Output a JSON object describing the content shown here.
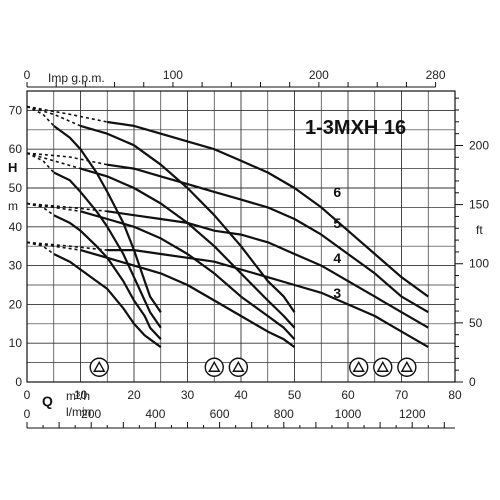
{
  "chart_data": {
    "type": "line",
    "title": "1-3MXH 16",
    "q_label": "Q",
    "h_label": "H",
    "h_unit": "m",
    "ft_label": "ft",
    "top_axis_label": "Imp g.p.m.",
    "m3h_label": "m³/h",
    "lmin_label": "l/min",
    "x_ticks_m3h": [
      0,
      10,
      20,
      30,
      40,
      50,
      60,
      70,
      80
    ],
    "x_ticks_lmin": [
      0,
      200,
      400,
      600,
      800,
      1000,
      1200
    ],
    "x_ticks_imp": [
      0,
      100,
      200,
      280
    ],
    "y_ticks_m": [
      0,
      10,
      20,
      30,
      40,
      50,
      60,
      70
    ],
    "y_ticks_ft": [
      0,
      50,
      100,
      150,
      200
    ],
    "xlim_m3h": [
      0,
      80
    ],
    "ylim_m": [
      0,
      75
    ],
    "grid": true,
    "pump_icon_groups": [
      {
        "count": 1,
        "label": "1 pump"
      },
      {
        "count": 2,
        "label": "2 pumps"
      },
      {
        "count": 3,
        "label": "3 pumps"
      }
    ],
    "series": [
      {
        "name": "6",
        "stages": 6,
        "pumps": 1,
        "solid": [
          [
            5,
            66
          ],
          [
            8,
            63
          ],
          [
            10,
            60
          ],
          [
            13,
            54
          ],
          [
            15,
            49
          ],
          [
            18,
            41
          ],
          [
            20,
            34
          ],
          [
            22,
            26
          ],
          [
            23,
            22
          ],
          [
            25,
            18
          ]
        ],
        "dashed": [
          [
            0,
            71
          ],
          [
            3,
            69
          ],
          [
            5,
            66
          ]
        ]
      },
      {
        "name": "6",
        "stages": 6,
        "pumps": 2,
        "solid": [
          [
            10,
            66
          ],
          [
            15,
            64
          ],
          [
            20,
            61
          ],
          [
            25,
            56
          ],
          [
            30,
            50
          ],
          [
            35,
            43
          ],
          [
            40,
            35
          ],
          [
            45,
            26
          ],
          [
            48,
            22
          ],
          [
            50,
            18
          ]
        ],
        "dashed": [
          [
            0,
            71
          ],
          [
            5,
            69
          ],
          [
            10,
            66
          ]
        ]
      },
      {
        "name": "6",
        "stages": 6,
        "pumps": 3,
        "solid": [
          [
            15,
            67
          ],
          [
            20,
            66
          ],
          [
            25,
            64
          ],
          [
            30,
            62
          ],
          [
            35,
            60
          ],
          [
            40,
            57
          ],
          [
            45,
            54
          ],
          [
            50,
            50
          ],
          [
            55,
            45
          ],
          [
            60,
            39
          ],
          [
            65,
            33
          ],
          [
            70,
            27
          ],
          [
            75,
            22
          ]
        ],
        "dashed": [
          [
            0,
            71
          ],
          [
            8,
            69
          ],
          [
            15,
            67
          ]
        ]
      },
      {
        "name": "5",
        "stages": 5,
        "pumps": 1,
        "solid": [
          [
            5,
            54
          ],
          [
            8,
            52
          ],
          [
            10,
            49
          ],
          [
            13,
            44
          ],
          [
            15,
            40
          ],
          [
            18,
            33
          ],
          [
            20,
            27
          ],
          [
            22,
            21
          ],
          [
            23,
            18
          ],
          [
            25,
            14
          ]
        ],
        "dashed": [
          [
            0,
            59
          ],
          [
            3,
            57
          ],
          [
            5,
            54
          ]
        ]
      },
      {
        "name": "5",
        "stages": 5,
        "pumps": 2,
        "solid": [
          [
            10,
            55
          ],
          [
            15,
            53
          ],
          [
            20,
            50
          ],
          [
            25,
            46
          ],
          [
            30,
            41
          ],
          [
            35,
            35
          ],
          [
            40,
            28
          ],
          [
            45,
            21
          ],
          [
            48,
            17
          ],
          [
            50,
            14
          ]
        ],
        "dashed": [
          [
            0,
            59
          ],
          [
            5,
            57
          ],
          [
            10,
            55
          ]
        ]
      },
      {
        "name": "5",
        "stages": 5,
        "pumps": 3,
        "solid": [
          [
            15,
            56
          ],
          [
            20,
            55
          ],
          [
            25,
            53
          ],
          [
            30,
            51
          ],
          [
            35,
            49
          ],
          [
            40,
            47
          ],
          [
            45,
            45
          ],
          [
            50,
            42
          ],
          [
            55,
            38
          ],
          [
            60,
            33
          ],
          [
            65,
            28
          ],
          [
            70,
            22
          ],
          [
            75,
            18
          ]
        ],
        "dashed": [
          [
            0,
            59
          ],
          [
            8,
            58
          ],
          [
            15,
            56
          ]
        ]
      },
      {
        "name": "4",
        "stages": 4,
        "pumps": 1,
        "solid": [
          [
            5,
            43
          ],
          [
            8,
            41
          ],
          [
            10,
            39
          ],
          [
            13,
            35
          ],
          [
            15,
            32
          ],
          [
            18,
            26
          ],
          [
            20,
            21
          ],
          [
            22,
            17
          ],
          [
            23,
            14
          ],
          [
            25,
            11
          ]
        ],
        "dashed": [
          [
            0,
            46
          ],
          [
            3,
            45
          ],
          [
            5,
            43
          ]
        ]
      },
      {
        "name": "4",
        "stages": 4,
        "pumps": 2,
        "solid": [
          [
            10,
            44
          ],
          [
            15,
            42
          ],
          [
            20,
            40
          ],
          [
            25,
            37
          ],
          [
            30,
            33
          ],
          [
            35,
            28
          ],
          [
            40,
            22
          ],
          [
            45,
            17
          ],
          [
            48,
            14
          ],
          [
            50,
            11
          ]
        ],
        "dashed": [
          [
            0,
            46
          ],
          [
            5,
            45
          ],
          [
            10,
            44
          ]
        ]
      },
      {
        "name": "4",
        "stages": 4,
        "pumps": 3,
        "solid": [
          [
            15,
            44
          ],
          [
            20,
            43
          ],
          [
            25,
            42
          ],
          [
            30,
            41
          ],
          [
            35,
            39
          ],
          [
            40,
            38
          ],
          [
            45,
            36
          ],
          [
            50,
            33
          ],
          [
            55,
            30
          ],
          [
            60,
            26
          ],
          [
            65,
            22
          ],
          [
            70,
            18
          ],
          [
            75,
            14
          ]
        ],
        "dashed": [
          [
            0,
            46
          ],
          [
            8,
            45
          ],
          [
            15,
            44
          ]
        ]
      },
      {
        "name": "3",
        "stages": 3,
        "pumps": 1,
        "solid": [
          [
            5,
            33
          ],
          [
            8,
            31
          ],
          [
            10,
            29
          ],
          [
            13,
            26
          ],
          [
            15,
            24
          ],
          [
            18,
            19
          ],
          [
            20,
            15
          ],
          [
            22,
            12
          ],
          [
            24,
            10
          ],
          [
            25,
            9
          ]
        ],
        "dashed": [
          [
            0,
            36
          ],
          [
            3,
            35
          ],
          [
            5,
            33
          ]
        ]
      },
      {
        "name": "3",
        "stages": 3,
        "pumps": 2,
        "solid": [
          [
            10,
            34
          ],
          [
            15,
            32
          ],
          [
            20,
            30
          ],
          [
            25,
            28
          ],
          [
            30,
            25
          ],
          [
            35,
            21
          ],
          [
            40,
            17
          ],
          [
            45,
            13
          ],
          [
            48,
            11
          ],
          [
            50,
            9
          ]
        ],
        "dashed": [
          [
            0,
            36
          ],
          [
            5,
            35
          ],
          [
            10,
            34
          ]
        ]
      },
      {
        "name": "3",
        "stages": 3,
        "pumps": 3,
        "solid": [
          [
            15,
            34
          ],
          [
            20,
            34
          ],
          [
            25,
            33
          ],
          [
            30,
            32
          ],
          [
            35,
            31
          ],
          [
            40,
            29
          ],
          [
            45,
            27
          ],
          [
            50,
            25
          ],
          [
            55,
            23
          ],
          [
            60,
            20
          ],
          [
            65,
            17
          ],
          [
            70,
            13
          ],
          [
            75,
            9
          ]
        ],
        "dashed": [
          [
            0,
            36
          ],
          [
            8,
            35
          ],
          [
            15,
            34
          ]
        ]
      }
    ],
    "curve_labels": [
      {
        "text": "6",
        "x": 58,
        "y": 49
      },
      {
        "text": "5",
        "x": 58,
        "y": 41
      },
      {
        "text": "4",
        "x": 58,
        "y": 32
      },
      {
        "text": "3",
        "x": 58,
        "y": 23
      }
    ]
  }
}
